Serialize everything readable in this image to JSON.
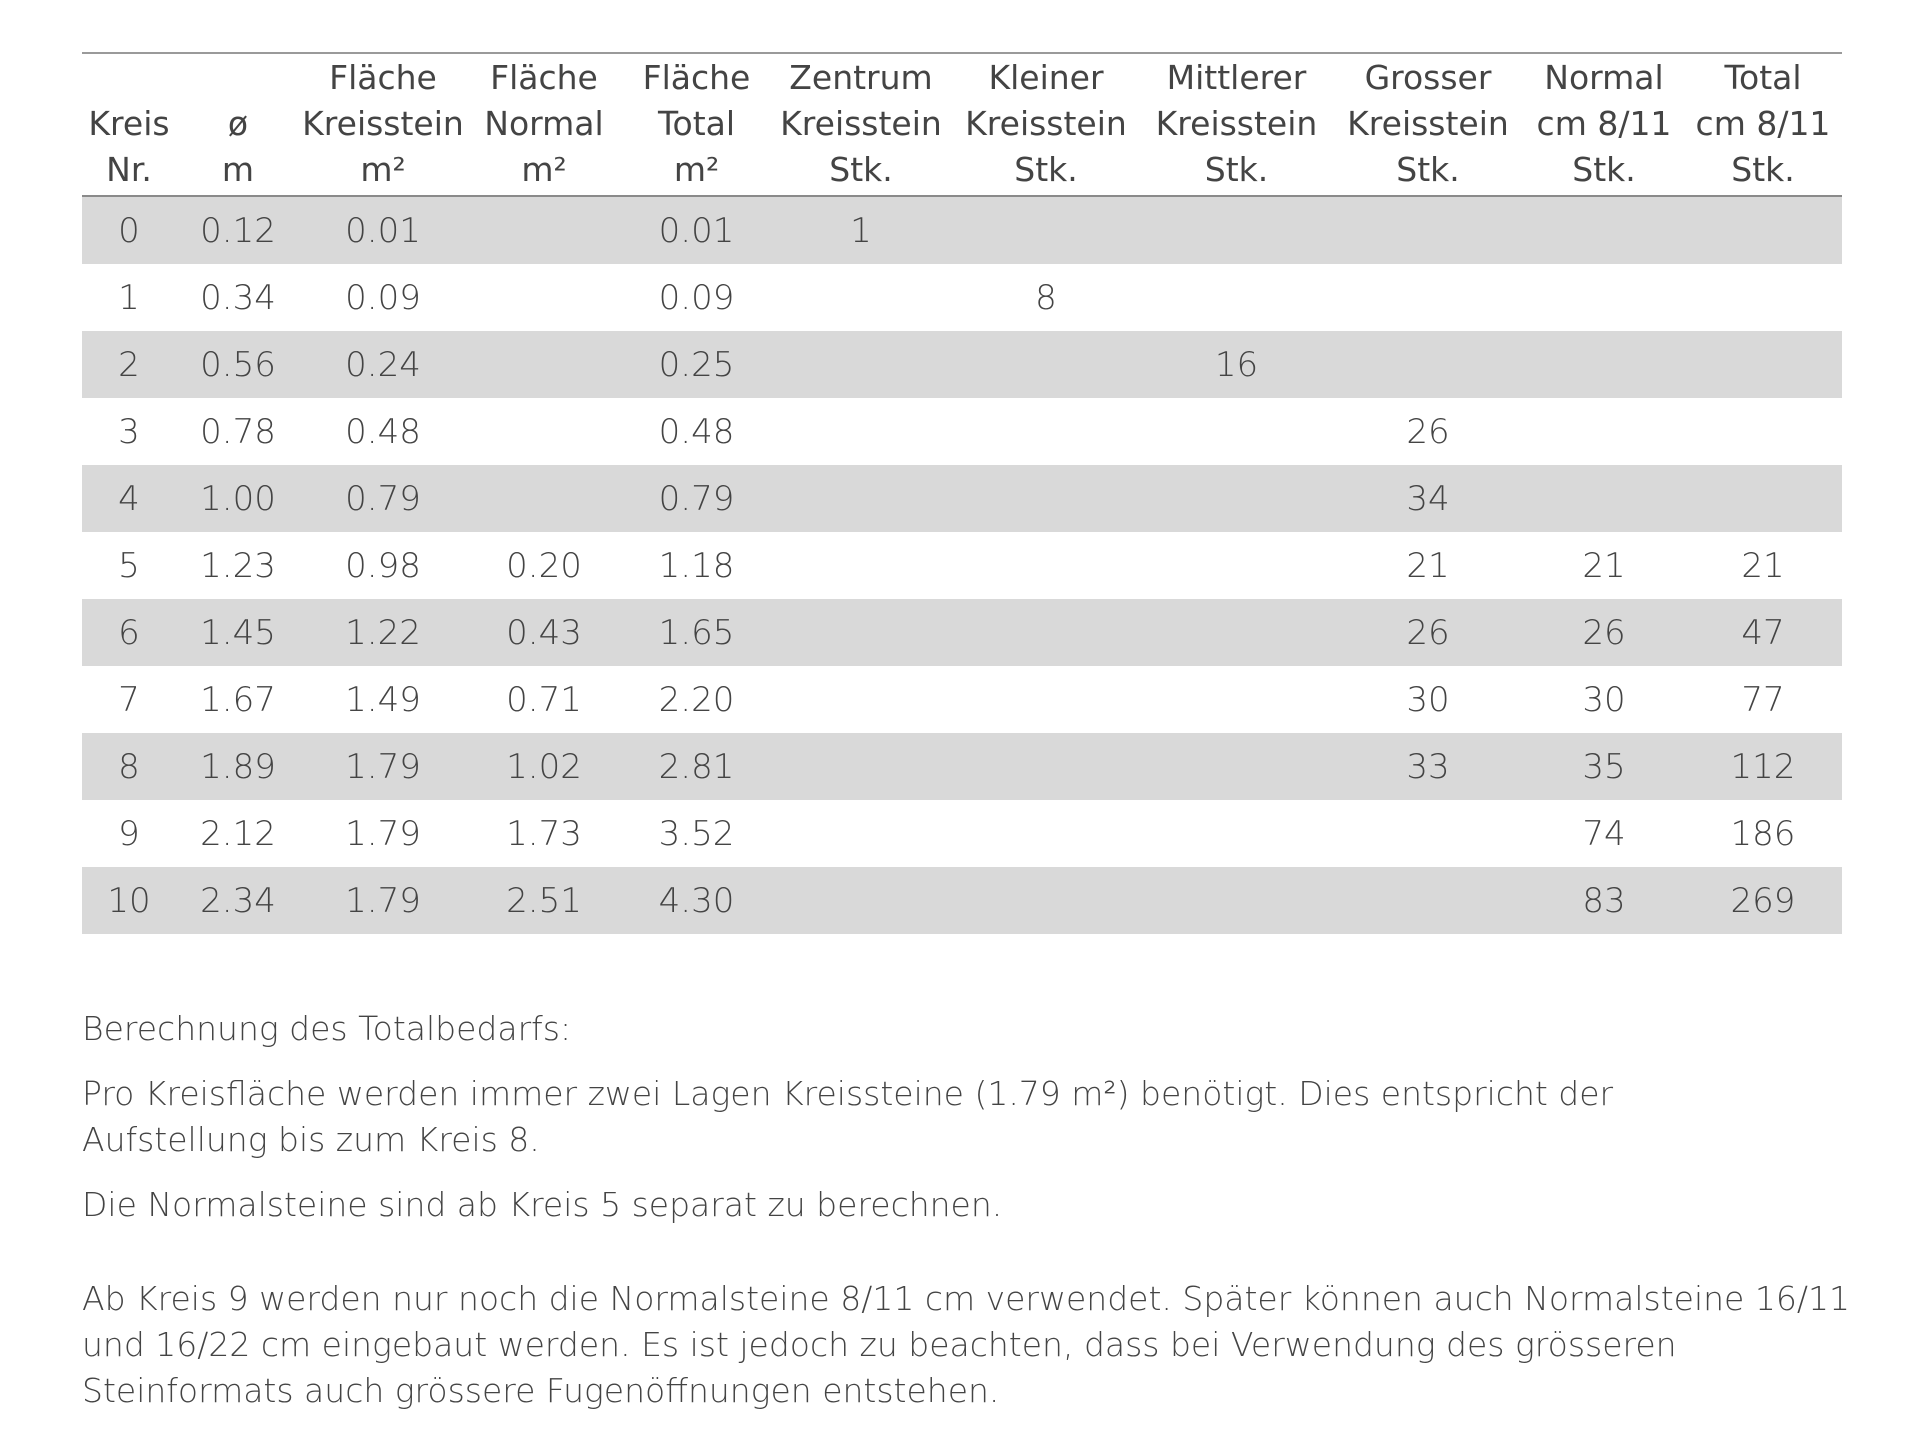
{
  "table": {
    "headers": [
      "Kreis\nNr.",
      "ø\nm",
      "Fläche\nKreisstein\nm²",
      "Fläche\nNormal\nm²",
      "Fläche\nTotal\nm²",
      "Zentrum\nKreisstein\nStk.",
      "Kleiner\nKreisstein\nStk.",
      "Mittlerer\nKreisstein\nStk.",
      "Grosser\nKreisstein\nStk.",
      "Normal\ncm 8/11\nStk.",
      "Total\ncm 8/11\nStk."
    ],
    "rows": [
      [
        "0",
        "0.12",
        "0.01",
        "",
        "0.01",
        "1",
        "",
        "",
        "",
        "",
        ""
      ],
      [
        "1",
        "0.34",
        "0.09",
        "",
        "0.09",
        "",
        "8",
        "",
        "",
        "",
        ""
      ],
      [
        "2",
        "0.56",
        "0.24",
        "",
        "0.25",
        "",
        "",
        "16",
        "",
        "",
        ""
      ],
      [
        "3",
        "0.78",
        "0.48",
        "",
        "0.48",
        "",
        "",
        "",
        "26",
        "",
        ""
      ],
      [
        "4",
        "1.00",
        "0.79",
        "",
        "0.79",
        "",
        "",
        "",
        "34",
        "",
        ""
      ],
      [
        "5",
        "1.23",
        "0.98",
        "0.20",
        "1.18",
        "",
        "",
        "",
        "21",
        "21",
        "21"
      ],
      [
        "6",
        "1.45",
        "1.22",
        "0.43",
        "1.65",
        "",
        "",
        "",
        "26",
        "26",
        "47"
      ],
      [
        "7",
        "1.67",
        "1.49",
        "0.71",
        "2.20",
        "",
        "",
        "",
        "30",
        "30",
        "77"
      ],
      [
        "8",
        "1.89",
        "1.79",
        "1.02",
        "2.81",
        "",
        "",
        "",
        "33",
        "35",
        "112"
      ],
      [
        "9",
        "2.12",
        "1.79",
        "1.73",
        "3.52",
        "",
        "",
        "",
        "",
        "74",
        "186"
      ],
      [
        "10",
        "2.34",
        "1.79",
        "2.51",
        "4.30",
        "",
        "",
        "",
        "",
        "83",
        "269"
      ]
    ]
  },
  "notes": {
    "heading": "Berechnung des Totalbedarfs:",
    "p1": "Pro Kreisfläche werden immer zwei Lagen Kreissteine (1.79 m²) benötigt. Dies entspricht der Aufstellung bis zum Kreis 8.",
    "p2": "Die Normalsteine sind ab Kreis 5 separat zu berechnen.",
    "p3": "Ab Kreis 9 werden nur noch die Normalsteine 8/11 cm verwendet. Später können auch Normalsteine 16/11 und 16/22 cm eingebaut werden. Es ist jedoch zu beachten, dass bei Verwendung des grösseren Steinformats auch grössere Fugenöffnungen entstehen."
  }
}
